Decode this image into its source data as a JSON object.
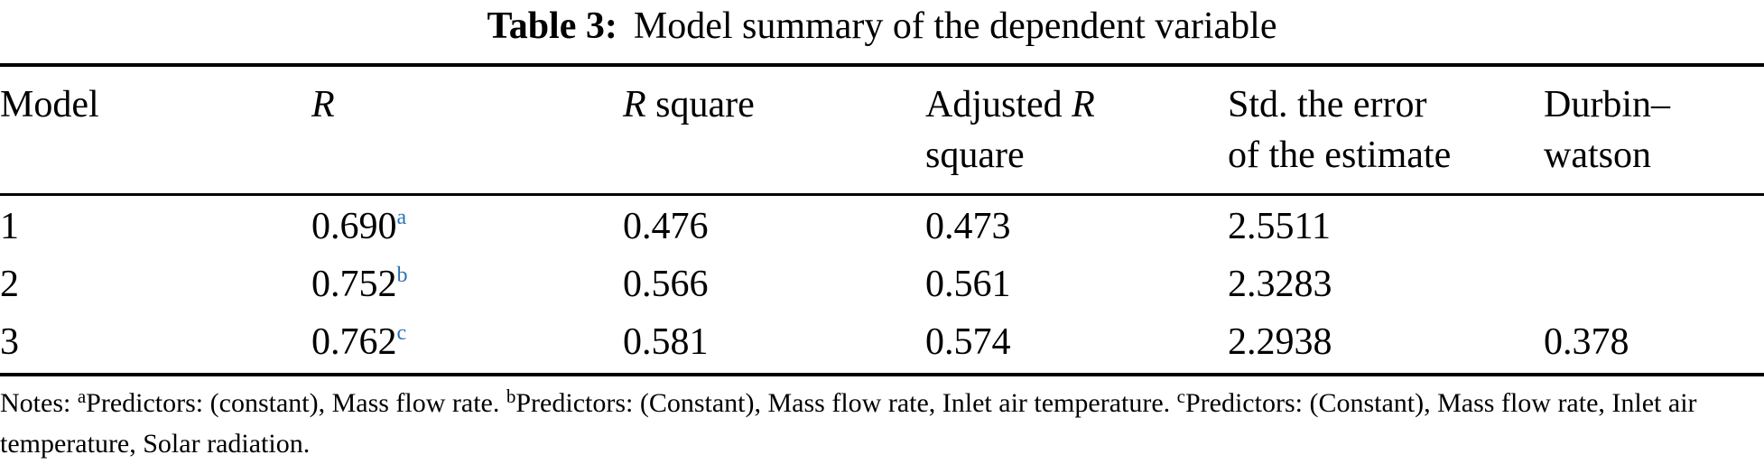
{
  "title": {
    "label": "Table 3:",
    "text": "Model summary of the dependent variable"
  },
  "colors": {
    "superscript_blue": "#2b72b8",
    "text": "#000000",
    "rule": "#000000"
  },
  "table": {
    "headers": {
      "model": "Model",
      "r_italic": "R",
      "r_square": {
        "italic": "R",
        "rest": " square"
      },
      "adjusted_r_square": {
        "pre": "Adjusted ",
        "italic": "R",
        "line2": "square"
      },
      "std_error": {
        "line1": "Std. the error",
        "line2": "of the estimate"
      },
      "durbin_watson": {
        "line1": "Durbin–",
        "line2": "watson"
      }
    },
    "rows": [
      {
        "model": "1",
        "r": "0.690",
        "r_sup": "a",
        "r_square": "0.476",
        "adj_r_square": "0.473",
        "std_error": "2.5511",
        "durbin_watson": ""
      },
      {
        "model": "2",
        "r": "0.752",
        "r_sup": "b",
        "r_square": "0.566",
        "adj_r_square": "0.561",
        "std_error": "2.3283",
        "durbin_watson": ""
      },
      {
        "model": "3",
        "r": "0.762",
        "r_sup": "c",
        "r_square": "0.581",
        "adj_r_square": "0.574",
        "std_error": "2.2938",
        "durbin_watson": "0.378"
      }
    ]
  },
  "notes": {
    "prefix": "Notes: ",
    "sup_a": "a",
    "note_a": "Predictors: (constant), Mass flow rate. ",
    "sup_b": "b",
    "note_b": "Predictors: (Constant), Mass flow rate, Inlet air temperature. ",
    "sup_c": "c",
    "note_c": "Predictors: (Constant), Mass flow rate, Inlet air temperature, Solar radiation."
  }
}
